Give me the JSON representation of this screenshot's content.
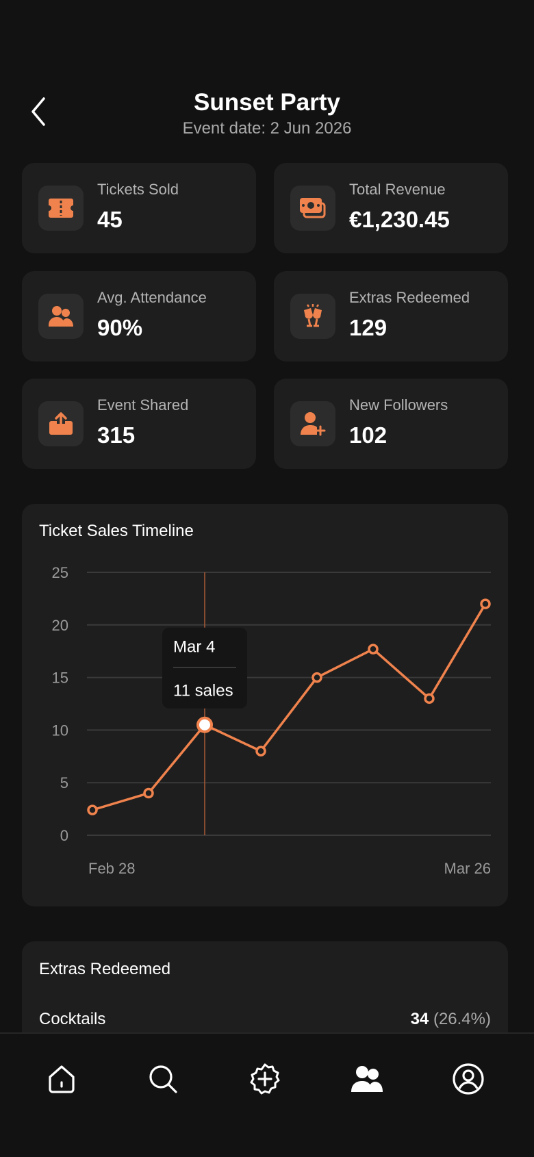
{
  "header": {
    "title": "Sunset Party",
    "subtitle": "Event date: 2 Jun 2026"
  },
  "stats": [
    {
      "label": "Tickets Sold",
      "value": "45",
      "icon": "ticket-icon"
    },
    {
      "label": "Total Revenue",
      "value": "€1,230.45",
      "icon": "money-icon"
    },
    {
      "label": "Avg. Attendance",
      "value": "90%",
      "icon": "people-icon"
    },
    {
      "label": "Extras Redeemed",
      "value": "129",
      "icon": "cheers-icon"
    },
    {
      "label": "Event Shared",
      "value": "315",
      "icon": "share-icon"
    },
    {
      "label": "New Followers",
      "value": "102",
      "icon": "add-user-icon"
    }
  ],
  "chart": {
    "title": "Ticket Sales Timeline",
    "tooltip_date": "Mar 4",
    "tooltip_value": "11 sales"
  },
  "chart_data": {
    "type": "line",
    "title": "Ticket Sales Timeline",
    "x_ticks": [
      "Feb 28",
      "Mar 26"
    ],
    "y_ticks": [
      "0",
      "5",
      "10",
      "15",
      "20",
      "25"
    ],
    "ylim": [
      0,
      25
    ],
    "points": [
      2.4,
      4,
      10.5,
      8,
      15,
      17.7,
      13,
      22
    ],
    "highlight_index": 2,
    "color": "#f0834d",
    "grid": true
  },
  "extras": {
    "title": "Extras Redeemed",
    "rows": [
      {
        "name": "Cocktails",
        "count": "34",
        "pct": "(26.4%)"
      }
    ]
  },
  "accent": "#f0834d",
  "nav": [
    "home-icon",
    "search-icon",
    "add-icon",
    "community-icon",
    "profile-icon"
  ]
}
